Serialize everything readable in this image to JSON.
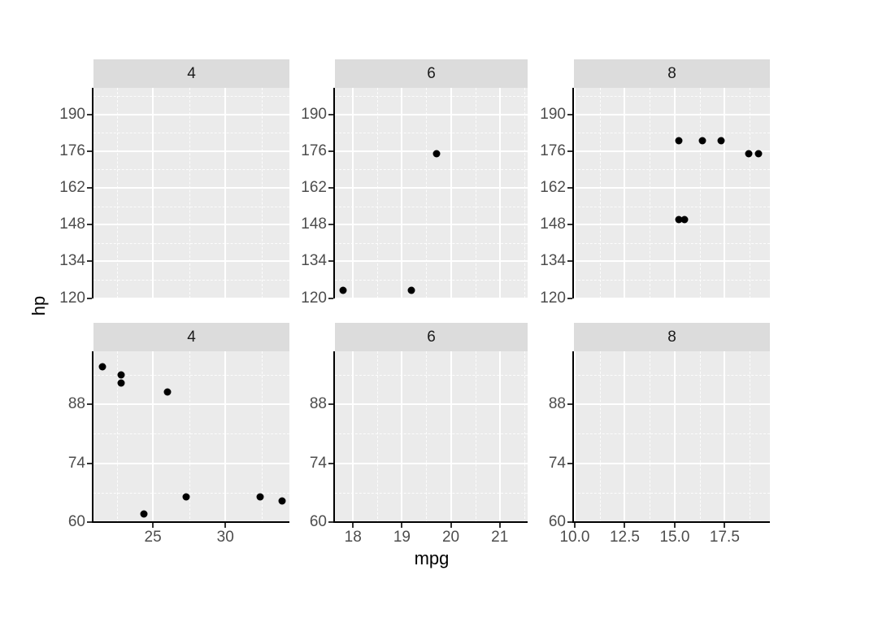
{
  "chart_data": {
    "type": "scatter",
    "title": "",
    "xlabel": "mpg",
    "ylabel": "hp",
    "grid": true,
    "legend": false,
    "facet_layout": "2 rows x 3 columns, facet strips on top of each panel",
    "facet_col_labels": [
      "4",
      "6",
      "8"
    ],
    "rows": [
      {
        "ylim": [
          119.9,
          200.1
        ],
        "yticks": [
          {
            "v": 120,
            "label": "120"
          },
          {
            "v": 134,
            "label": "134"
          },
          {
            "v": 148,
            "label": "148"
          },
          {
            "v": 162,
            "label": "162"
          },
          {
            "v": 176,
            "label": "176"
          },
          {
            "v": 190,
            "label": "190"
          }
        ]
      },
      {
        "ylim": [
          59.8,
          100.6
        ],
        "yticks": [
          {
            "v": 60,
            "label": "60"
          },
          {
            "v": 74,
            "label": "74"
          },
          {
            "v": 88,
            "label": "88"
          }
        ]
      }
    ],
    "cols": [
      {
        "xlim": [
          20.9,
          34.42
        ],
        "xticks": [
          {
            "v": 25,
            "label": "25"
          },
          {
            "v": 30,
            "label": "30"
          }
        ]
      },
      {
        "xlim": [
          17.63,
          21.57
        ],
        "xticks": [
          {
            "v": 18,
            "label": "18"
          },
          {
            "v": 19,
            "label": "19"
          },
          {
            "v": 20,
            "label": "20"
          },
          {
            "v": 21,
            "label": "21"
          }
        ]
      },
      {
        "xlim": [
          9.96,
          19.76
        ],
        "xticks": [
          {
            "v": 10.0,
            "label": "10.0"
          },
          {
            "v": 12.5,
            "label": "12.5"
          },
          {
            "v": 15.0,
            "label": "15.0"
          },
          {
            "v": 17.5,
            "label": "17.5"
          }
        ]
      }
    ],
    "facets": [
      {
        "row": 0,
        "col": 0,
        "strip": "4",
        "points": []
      },
      {
        "row": 0,
        "col": 1,
        "strip": "6",
        "points": [
          [
            17.8,
            123
          ],
          [
            19.2,
            123
          ],
          [
            19.7,
            175
          ]
        ]
      },
      {
        "row": 0,
        "col": 2,
        "strip": "8",
        "points": [
          [
            15.2,
            180
          ],
          [
            16.4,
            180
          ],
          [
            17.3,
            180
          ],
          [
            18.7,
            175
          ],
          [
            19.2,
            175
          ],
          [
            15.2,
            150
          ],
          [
            15.5,
            150
          ]
        ]
      },
      {
        "row": 1,
        "col": 0,
        "strip": "4",
        "points": [
          [
            21.5,
            97
          ],
          [
            22.8,
            95
          ],
          [
            22.8,
            93
          ],
          [
            26.0,
            91
          ],
          [
            24.4,
            62
          ],
          [
            27.3,
            66
          ],
          [
            32.4,
            66
          ],
          [
            33.9,
            65
          ]
        ]
      },
      {
        "row": 1,
        "col": 1,
        "strip": "6",
        "points": []
      },
      {
        "row": 1,
        "col": 2,
        "strip": "8",
        "points": []
      }
    ]
  },
  "colors": {
    "background": "#ffffff",
    "panel_bg": "#ebebeb",
    "strip_bg": "#dcdcdc",
    "grid": "#ffffff",
    "tick_text": "#4d4d4d",
    "strip_text": "#1a1a1a",
    "axis_title_text": "#000000",
    "axis_line": "#000000",
    "point": "#000000"
  }
}
